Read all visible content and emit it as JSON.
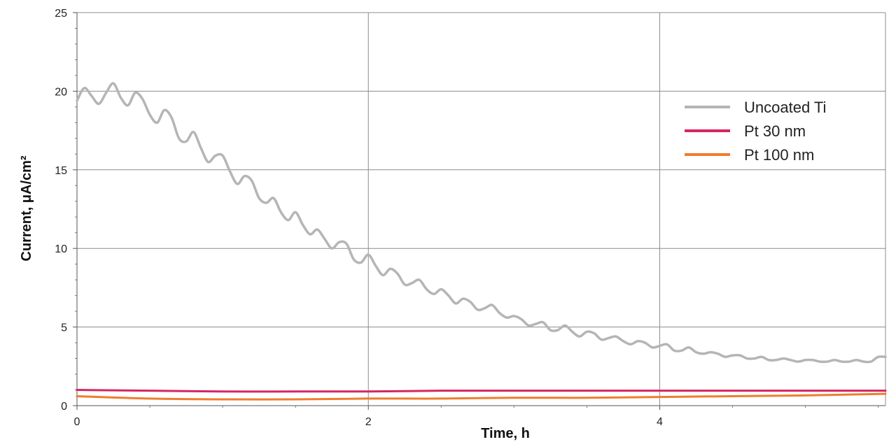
{
  "chart_data": {
    "type": "line",
    "xlabel": "Time, h",
    "ylabel": "Current, μA/cm²",
    "xlim": [
      0,
      5.55
    ],
    "ylim": [
      0,
      25
    ],
    "x_ticks": [
      0,
      2,
      4
    ],
    "y_ticks": [
      0,
      5,
      10,
      15,
      20,
      25
    ],
    "x_minor_ticks": [
      0.5,
      1,
      1.5,
      2.5,
      3,
      3.5,
      4.5,
      5,
      5.5
    ],
    "y_minor_ticks": [
      1,
      2,
      3,
      4,
      6,
      7,
      8,
      9,
      11,
      12,
      13,
      14,
      16,
      17,
      18,
      19,
      21,
      22,
      23,
      24
    ],
    "grid": true,
    "legend_position": "right",
    "series": [
      {
        "name": "Uncoated Ti",
        "color": "#b5b5b5",
        "x": [
          0,
          0.05,
          0.1,
          0.15,
          0.2,
          0.25,
          0.3,
          0.35,
          0.4,
          0.45,
          0.5,
          0.55,
          0.6,
          0.65,
          0.7,
          0.75,
          0.8,
          0.85,
          0.9,
          0.95,
          1.0,
          1.05,
          1.1,
          1.15,
          1.2,
          1.25,
          1.3,
          1.35,
          1.4,
          1.45,
          1.5,
          1.55,
          1.6,
          1.65,
          1.7,
          1.75,
          1.8,
          1.85,
          1.9,
          1.95,
          2.0,
          2.05,
          2.1,
          2.15,
          2.2,
          2.25,
          2.3,
          2.35,
          2.4,
          2.45,
          2.5,
          2.55,
          2.6,
          2.65,
          2.7,
          2.75,
          2.8,
          2.85,
          2.9,
          2.95,
          3.0,
          3.05,
          3.1,
          3.15,
          3.2,
          3.25,
          3.3,
          3.35,
          3.4,
          3.45,
          3.5,
          3.55,
          3.6,
          3.65,
          3.7,
          3.75,
          3.8,
          3.85,
          3.9,
          3.95,
          4.0,
          4.05,
          4.1,
          4.15,
          4.2,
          4.25,
          4.3,
          4.35,
          4.4,
          4.45,
          4.5,
          4.55,
          4.6,
          4.65,
          4.7,
          4.75,
          4.8,
          4.85,
          4.9,
          4.95,
          5.0,
          5.05,
          5.1,
          5.15,
          5.2,
          5.25,
          5.3,
          5.35,
          5.4,
          5.45,
          5.5,
          5.55
        ],
        "y": [
          19.4,
          20.2,
          19.7,
          19.2,
          19.9,
          20.5,
          19.6,
          19.1,
          19.9,
          19.5,
          18.5,
          18.0,
          18.8,
          18.3,
          17.0,
          16.8,
          17.4,
          16.4,
          15.5,
          15.9,
          15.9,
          14.9,
          14.1,
          14.6,
          14.3,
          13.2,
          12.9,
          13.2,
          12.3,
          11.8,
          12.3,
          11.5,
          10.9,
          11.2,
          10.6,
          10.0,
          10.4,
          10.3,
          9.3,
          9.1,
          9.6,
          8.9,
          8.3,
          8.7,
          8.4,
          7.7,
          7.8,
          8.0,
          7.4,
          7.1,
          7.4,
          7.0,
          6.5,
          6.8,
          6.6,
          6.1,
          6.2,
          6.4,
          5.9,
          5.6,
          5.7,
          5.5,
          5.1,
          5.2,
          5.3,
          4.8,
          4.8,
          5.1,
          4.7,
          4.4,
          4.7,
          4.6,
          4.2,
          4.3,
          4.4,
          4.1,
          3.9,
          4.1,
          4.0,
          3.7,
          3.8,
          3.9,
          3.5,
          3.5,
          3.7,
          3.4,
          3.3,
          3.4,
          3.3,
          3.1,
          3.2,
          3.2,
          3.0,
          3.0,
          3.1,
          2.9,
          2.9,
          3.0,
          2.9,
          2.8,
          2.9,
          2.9,
          2.8,
          2.8,
          2.9,
          2.8,
          2.8,
          2.9,
          2.8,
          2.8,
          3.1,
          3.1
        ]
      },
      {
        "name": "Pt 30 nm",
        "color": "#d62660",
        "x": [
          0,
          0.5,
          1.0,
          1.5,
          2.0,
          2.5,
          3.0,
          3.5,
          4.0,
          4.5,
          5.0,
          5.55
        ],
        "y": [
          1.0,
          0.95,
          0.9,
          0.9,
          0.9,
          0.95,
          0.95,
          0.95,
          0.95,
          0.95,
          0.95,
          0.95
        ]
      },
      {
        "name": "Pt 100 nm",
        "color": "#ef7d2e",
        "x": [
          0,
          0.5,
          1.0,
          1.5,
          2.0,
          2.5,
          3.0,
          3.5,
          4.0,
          4.5,
          5.0,
          5.55
        ],
        "y": [
          0.6,
          0.45,
          0.4,
          0.4,
          0.45,
          0.45,
          0.5,
          0.5,
          0.55,
          0.6,
          0.65,
          0.75
        ]
      }
    ]
  }
}
